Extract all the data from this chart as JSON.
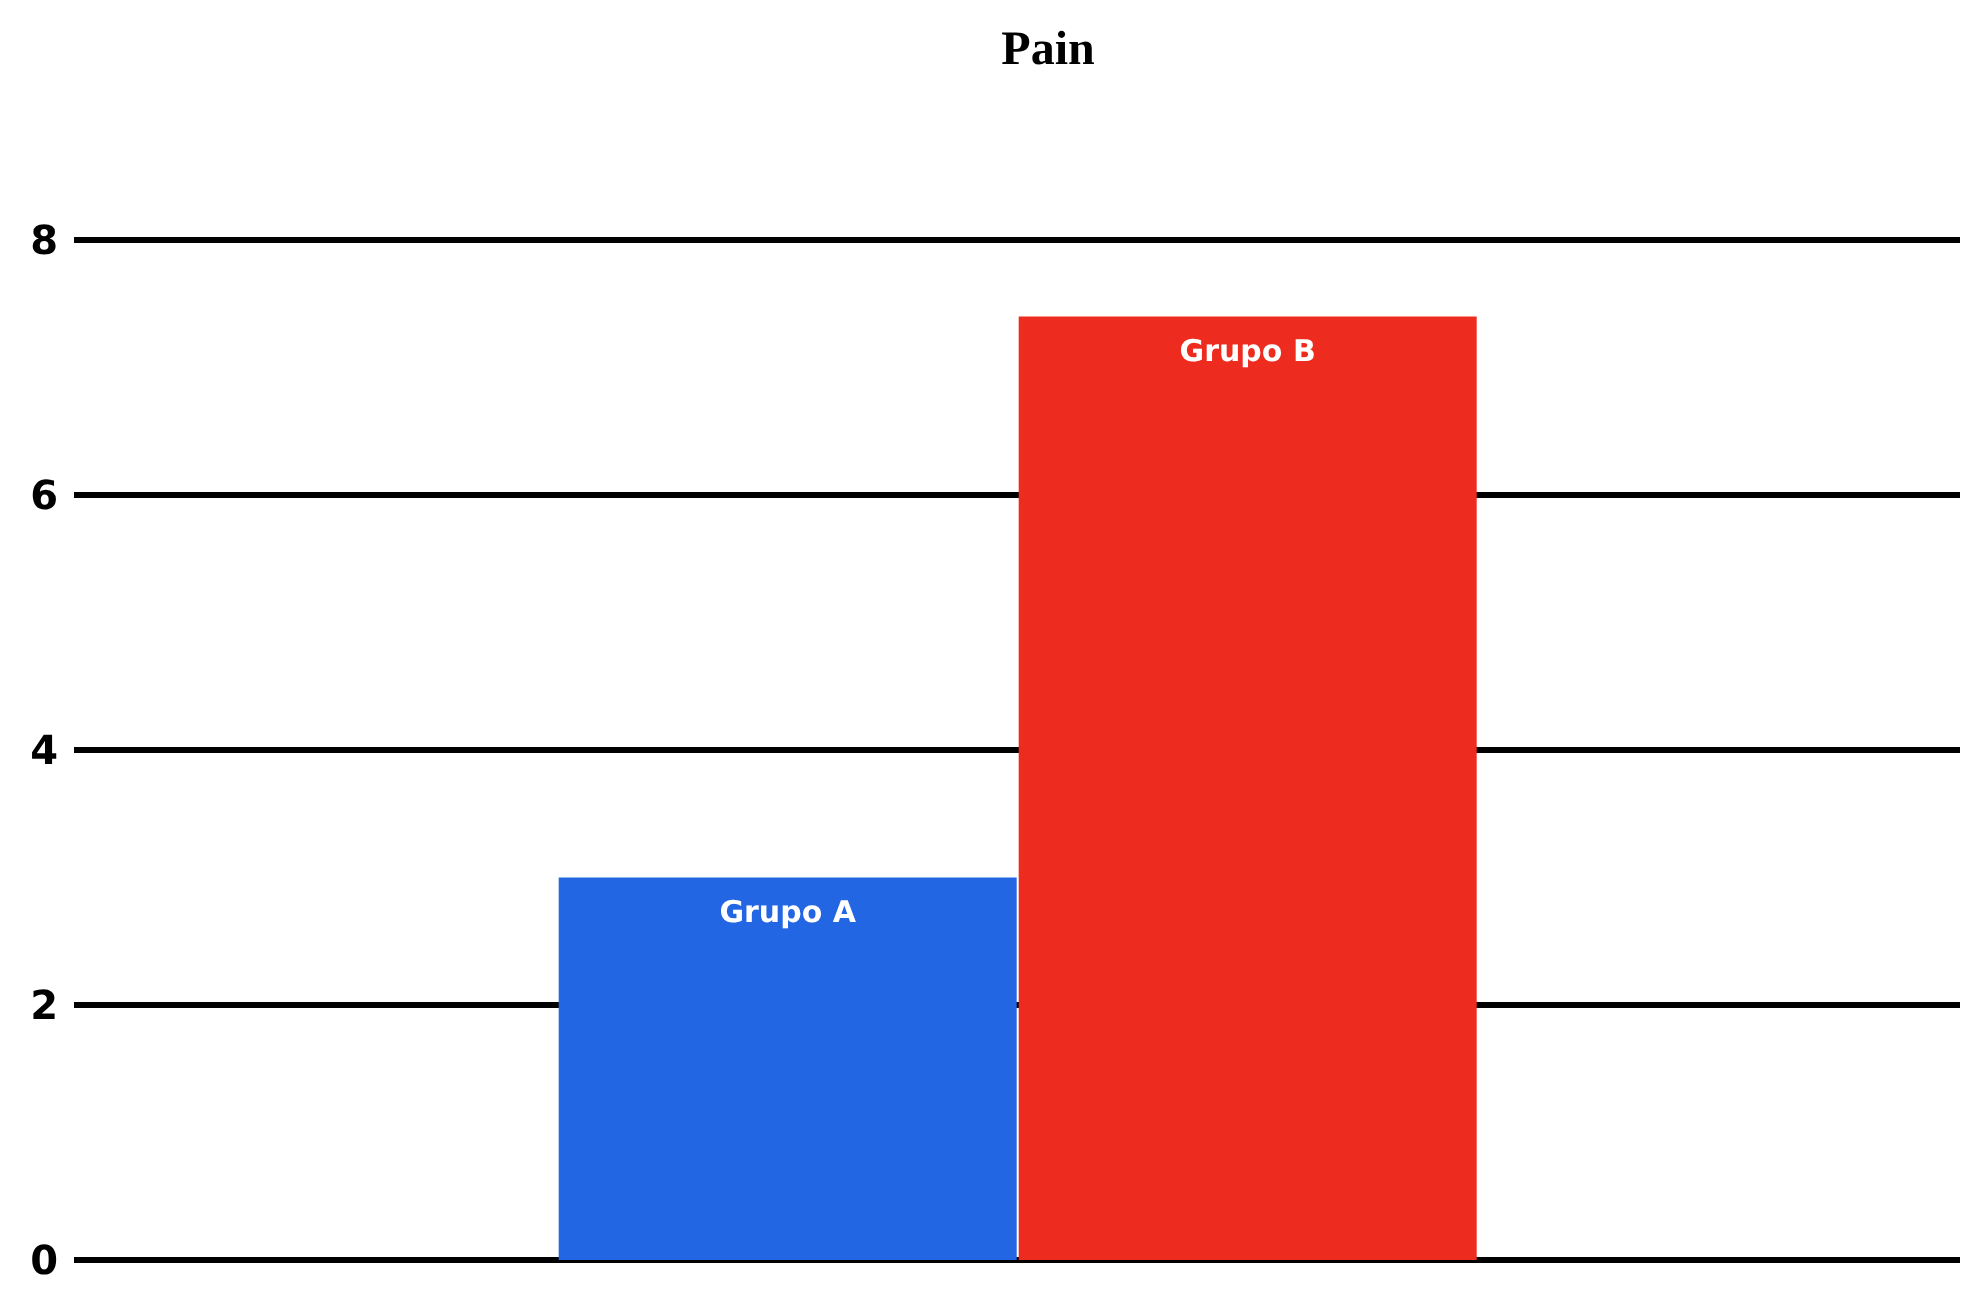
{
  "chart_data": {
    "type": "bar",
    "title": "Pain",
    "categories": [
      null
    ],
    "series": [
      {
        "name": "Grupo A",
        "color": "#2366e3",
        "values": [
          3.0
        ]
      },
      {
        "name": "Grupo B",
        "color": "#ee2b1f",
        "values": [
          7.4
        ]
      }
    ],
    "ylim": [
      0,
      8
    ],
    "yticks": [
      0,
      2,
      4,
      6,
      8
    ],
    "grid": "y",
    "legend": false,
    "tick_labels": "y"
  }
}
